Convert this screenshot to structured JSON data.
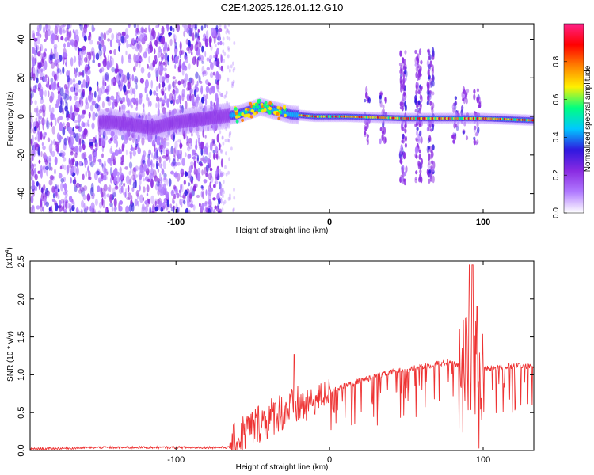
{
  "title": "C2E4.2025.126.01.12.G10",
  "chart_data": [
    {
      "type": "heatmap",
      "title": "C2E4.2025.126.01.12.G10",
      "xlabel": "Height of straight line (km)",
      "ylabel": "Frequency (Hz)",
      "xlim": [
        -195,
        133
      ],
      "ylim": [
        -50,
        48
      ],
      "xticks": [
        "-100",
        "0",
        "100"
      ],
      "yticks": [
        "-40",
        "-20",
        "0",
        "20",
        "40"
      ],
      "colorbar": {
        "label": "Normalized spectral amplitude",
        "range": [
          0,
          1
        ],
        "ticks": [
          "0.0",
          "0.2",
          "0.4",
          "0.6",
          "0.8"
        ],
        "colormap": [
          "#ffffff",
          "#b07aff",
          "#8a2be2",
          "#2f18e0",
          "#00c8ff",
          "#00ff80",
          "#fff000",
          "#ff8000",
          "#ff0000",
          "#ff2288"
        ]
      },
      "ridge_center_hz": [
        {
          "x": -140,
          "y": -3
        },
        {
          "x": -115,
          "y": -6
        },
        {
          "x": -100,
          "y": -3
        },
        {
          "x": -80,
          "y": -1
        },
        {
          "x": -60,
          "y": 1
        },
        {
          "x": -45,
          "y": 5
        },
        {
          "x": -35,
          "y": 3
        },
        {
          "x": -25,
          "y": 1
        },
        {
          "x": -10,
          "y": 0
        },
        {
          "x": 10,
          "y": 0
        },
        {
          "x": 50,
          "y": -1
        },
        {
          "x": 100,
          "y": -1
        },
        {
          "x": 133,
          "y": -2
        }
      ],
      "bursts_x_km": [
        24,
        35,
        48,
        58,
        66,
        82,
        88,
        96
      ],
      "grid": false
    },
    {
      "type": "line",
      "xlabel": "Height of straight line (km)",
      "ylabel": "SNR (10 * v/v)",
      "y_multiplier": "(x10",
      "y_multiplier_exp": "4",
      "xlim": [
        -195,
        133
      ],
      "ylim": [
        0,
        2.5
      ],
      "xticks": [
        "-100",
        "0",
        "100"
      ],
      "yticks": [
        "0.0",
        "0.5",
        "1.0",
        "1.5",
        "2.0",
        "2.5"
      ],
      "color": "#ee3333",
      "grid": false,
      "series": [
        {
          "x": [
            -195,
            -170,
            -150,
            -130,
            -100,
            -80,
            -65,
            -60,
            -55,
            -50,
            -45,
            -40,
            -35,
            -30,
            -25,
            -20,
            -15,
            -10,
            -5,
            0,
            10,
            20,
            30,
            40,
            50,
            60,
            70,
            80,
            85,
            90,
            95,
            100,
            110,
            120,
            133
          ],
          "y": [
            0.02,
            0.03,
            0.04,
            0.04,
            0.04,
            0.04,
            0.04,
            0.12,
            0.25,
            0.3,
            0.38,
            0.4,
            0.5,
            0.52,
            0.55,
            0.6,
            0.6,
            0.65,
            0.72,
            0.78,
            0.85,
            0.92,
            0.98,
            1.03,
            1.07,
            1.1,
            1.15,
            1.17,
            1.1,
            1.15,
            1.1,
            1.08,
            1.1,
            1.12,
            1.12
          ],
          "peaks": [
            {
              "x": -23,
              "y": 1.27
            },
            {
              "x": 89,
              "y": 1.75
            },
            {
              "x": 91,
              "y": 2.45
            },
            {
              "x": 93,
              "y": 2.45
            },
            {
              "x": 96,
              "y": 1.9
            }
          ]
        }
      ]
    }
  ]
}
